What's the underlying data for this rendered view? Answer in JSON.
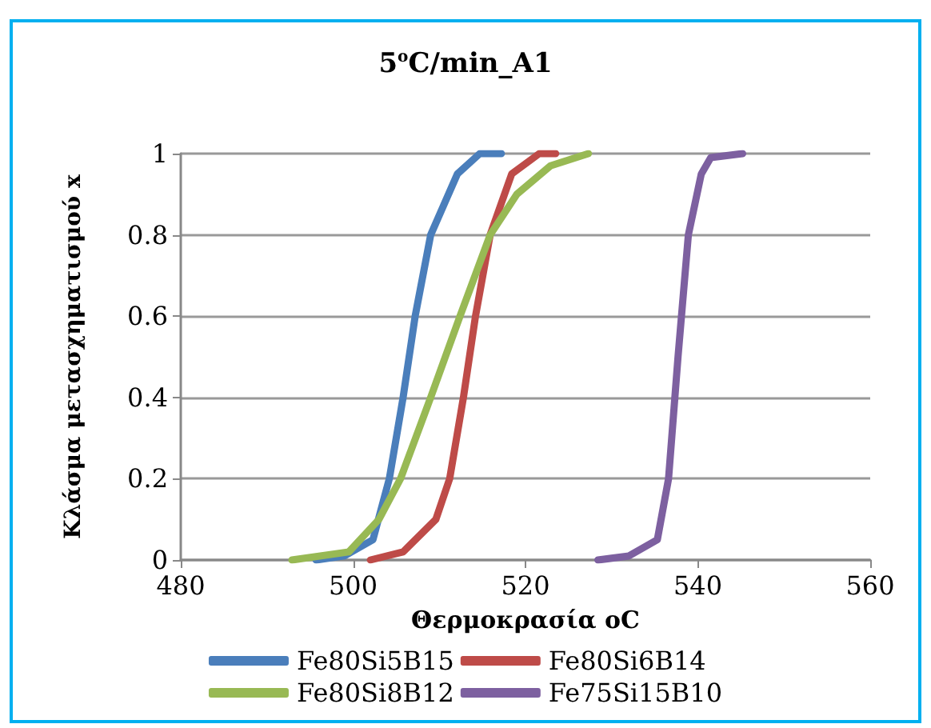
{
  "chart_data": {
    "type": "line",
    "title": "5$^{o}$C/min_A1",
    "xlabel": "Θερμοκρασία oC",
    "ylabel": "Κλάσμα μετασχηματισμού x",
    "xlim": [
      480,
      560
    ],
    "xticks": [
      480,
      500,
      520,
      540,
      560
    ],
    "ylim": [
      0,
      1
    ],
    "yticks": [
      0,
      0.2,
      0.4,
      0.6,
      0.8,
      1
    ],
    "grid": "y",
    "legend": "bottom",
    "marker": "none",
    "line_style": "solid",
    "series": [
      {
        "name": "Fe80Si5B15",
        "color": "#4a7ebb",
        "x": [
          495.7,
          499,
          502.3,
          504.2,
          505.8,
          507.2,
          509,
          512.1,
          514.7,
          517.2
        ],
        "values": [
          0,
          0.01,
          0.05,
          0.2,
          0.4,
          0.6,
          0.8,
          0.95,
          1,
          1
        ]
      },
      {
        "name": "Fe80Si6B14",
        "color": "#be4b48",
        "x": [
          502,
          505.8,
          509.6,
          511.2,
          512.8,
          514.2,
          515.9,
          518.4,
          521.6,
          523.5
        ],
        "values": [
          0,
          0.02,
          0.1,
          0.2,
          0.4,
          0.6,
          0.8,
          0.95,
          1,
          1
        ]
      },
      {
        "name": "Fe80Si8B12",
        "color": "#98b954",
        "x": [
          492.9,
          499.5,
          503,
          505.5,
          509,
          512.4,
          515.9,
          519,
          522.9,
          527.3
        ],
        "values": [
          0,
          0.02,
          0.1,
          0.2,
          0.4,
          0.6,
          0.8,
          0.9,
          0.97,
          1
        ]
      },
      {
        "name": "Fe75Si15B10",
        "color": "#7d60a0",
        "x": [
          528.4,
          532,
          535.3,
          536.6,
          537.7,
          538.9,
          540.4,
          541.5,
          545.2
        ],
        "values": [
          0,
          0.01,
          0.05,
          0.2,
          0.5,
          0.8,
          0.95,
          0.99,
          1
        ]
      }
    ]
  }
}
